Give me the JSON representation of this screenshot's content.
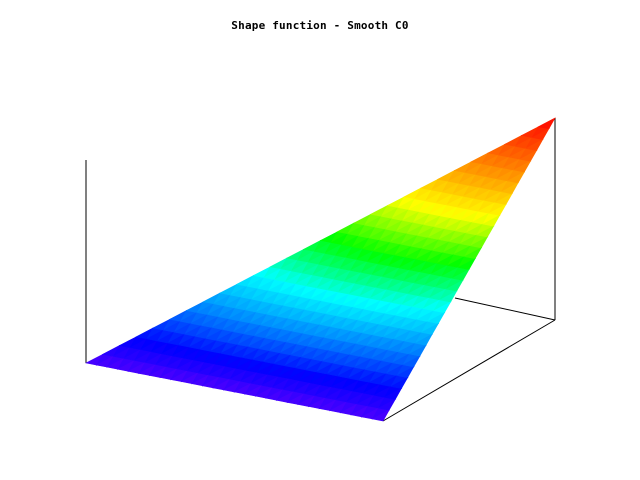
{
  "chart_data": {
    "type": "surface",
    "title": "Shape function - Smooth C0",
    "xlabel": "",
    "ylabel": "",
    "zlabel": "",
    "grid": false,
    "legend": "none",
    "colormap": [
      "#5000ff",
      "#0000ff",
      "#0080ff",
      "#00ffff",
      "#00ff00",
      "#ffff00",
      "#ff8000",
      "#ff0000"
    ],
    "domain": "triangle",
    "surface": "z = smooth function rising from 0 at two corners to 1 at the far corner"
  }
}
